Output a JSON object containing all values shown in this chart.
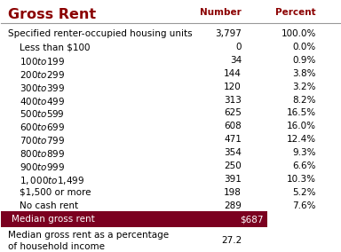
{
  "title": "Gross Rent",
  "title_color": "#8B0000",
  "col_header_number": "Number",
  "col_header_percent": "Percent",
  "col_header_color": "#8B0000",
  "header_row": {
    "label": "Specified renter-occupied housing units",
    "number": "3,797",
    "percent": "100.0%"
  },
  "rows": [
    {
      "label": "Less than $100",
      "number": "0",
      "percent": "0.0%"
    },
    {
      "label": "$100 to $199",
      "number": "34",
      "percent": "0.9%"
    },
    {
      "label": "$200 to $299",
      "number": "144",
      "percent": "3.8%"
    },
    {
      "label": "$300 to $399",
      "number": "120",
      "percent": "3.2%"
    },
    {
      "label": "$400 to $499",
      "number": "313",
      "percent": "8.2%"
    },
    {
      "label": "$500 to $599",
      "number": "625",
      "percent": "16.5%"
    },
    {
      "label": "$600 to $699",
      "number": "608",
      "percent": "16.0%"
    },
    {
      "label": "$700 to $799",
      "number": "471",
      "percent": "12.4%"
    },
    {
      "label": "$800 to $899",
      "number": "354",
      "percent": "9.3%"
    },
    {
      "label": "$900 to $999",
      "number": "250",
      "percent": "6.6%"
    },
    {
      "label": "$1,000 to $1,499",
      "number": "391",
      "percent": "10.3%"
    },
    {
      "label": "$1,500 or more",
      "number": "198",
      "percent": "5.2%"
    },
    {
      "label": "No cash rent",
      "number": "289",
      "percent": "7.6%"
    }
  ],
  "median_row": {
    "label": "Median gross rent",
    "value": "$687",
    "bg_color": "#7B0020",
    "text_color": "#FFFFFF"
  },
  "footer_row": {
    "label": "Median gross rent as a percentage\nof household income",
    "value": "27.2"
  },
  "bg_color": "#FFFFFF",
  "text_color": "#000000",
  "header_line_color": "#999999",
  "font_size": 7.5
}
